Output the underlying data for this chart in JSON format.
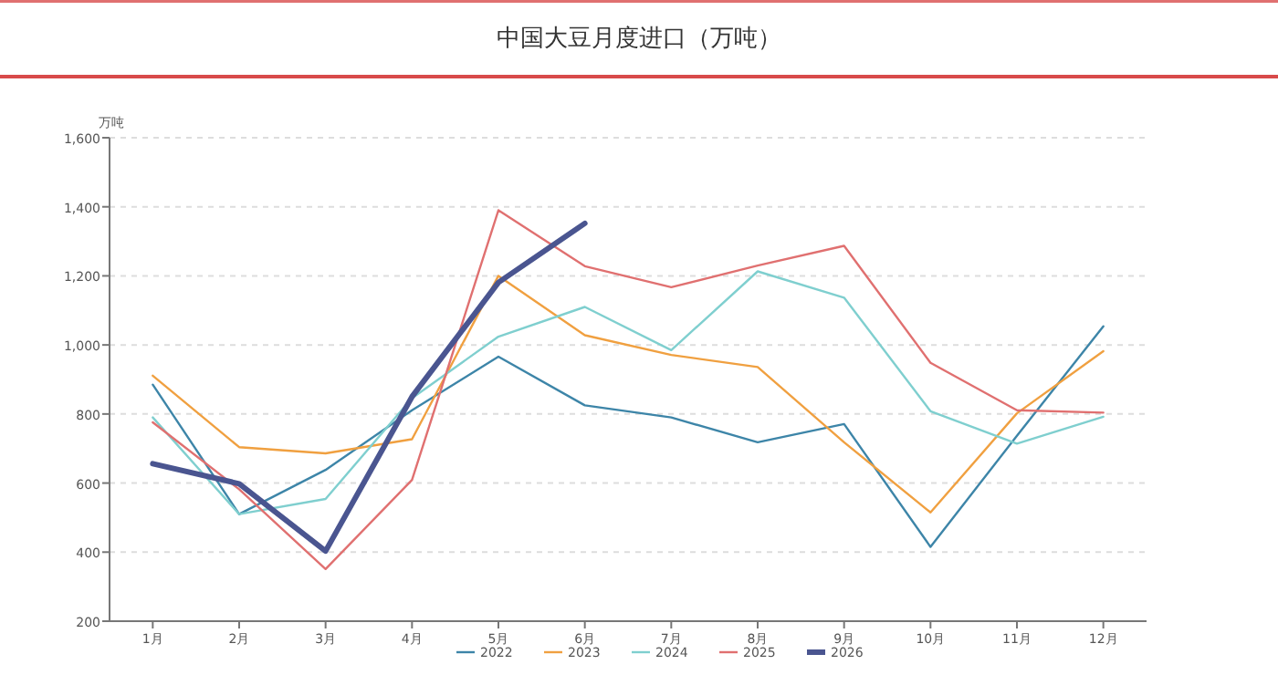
{
  "chart_data": {
    "type": "line",
    "title": "中国大豆月度进口（万吨）",
    "ylabel": "万吨",
    "categories": [
      "1月",
      "2月",
      "3月",
      "4月",
      "5月",
      "6月",
      "7月",
      "8月",
      "9月",
      "10月",
      "11月",
      "12月"
    ],
    "ylim": [
      200,
      1600
    ],
    "yticks": [
      {
        "value": 200,
        "label": "200"
      },
      {
        "value": 400,
        "label": "400"
      },
      {
        "value": 600,
        "label": "600"
      },
      {
        "value": 800,
        "label": "800"
      },
      {
        "value": 1000,
        "label": "1,000"
      },
      {
        "value": 1200,
        "label": "1,200"
      },
      {
        "value": 1400,
        "label": "1,400"
      },
      {
        "value": 1600,
        "label": "1,600"
      }
    ],
    "grid": "y",
    "legend": "bottom",
    "marker": "none",
    "series": [
      {
        "name": "2022",
        "color": "#3d85a8",
        "values": [
          885,
          510,
          638,
          811,
          966,
          825,
          790,
          718,
          771,
          415,
          737,
          1054
        ]
      },
      {
        "name": "2023",
        "color": "#f0a040",
        "values": [
          911,
          704,
          686,
          727,
          1200,
          1028,
          971,
          936,
          718,
          515,
          802,
          982
        ]
      },
      {
        "name": "2024",
        "color": "#7fcfcf",
        "values": [
          790,
          510,
          554,
          846,
          1024,
          1110,
          985,
          1213,
          1137,
          808,
          714,
          792
        ]
      },
      {
        "name": "2025",
        "color": "#e07070",
        "values": [
          776,
          582,
          351,
          609,
          1390,
          1228,
          1167,
          1230,
          1287,
          948,
          811,
          804
        ]
      },
      {
        "name": "2026",
        "color": "#4a5590",
        "values": [
          656,
          598,
          403,
          850,
          1181,
          1352,
          null,
          null,
          null,
          null,
          null,
          null
        ]
      }
    ]
  }
}
